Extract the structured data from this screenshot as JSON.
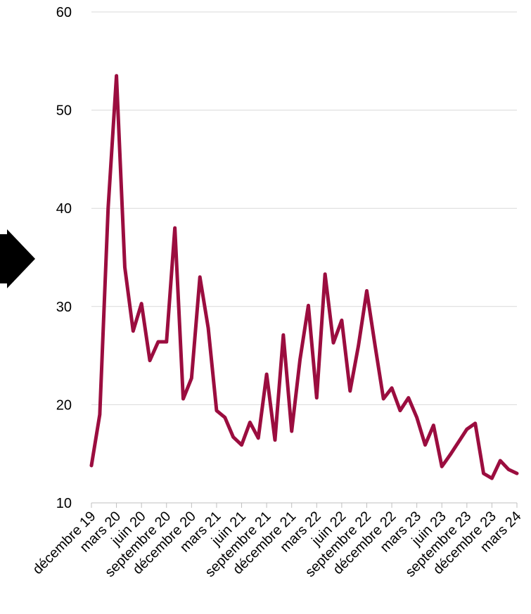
{
  "chart_data": {
    "type": "line",
    "title": "",
    "xlabel": "",
    "ylabel": "",
    "ylim": [
      10,
      60
    ],
    "yticks": [
      "10",
      "20",
      "30",
      "40",
      "50",
      "60"
    ],
    "grid": true,
    "legend": "none",
    "x_tick_labels": [
      "décembre 19",
      "mars 20",
      "juin 20",
      "septembre 20",
      "décembre 20",
      "mars 21",
      "juin 21",
      "septembre 21",
      "décembre 21",
      "mars 22",
      "juin 22",
      "septembre 22",
      "décembre 22",
      "mars 23",
      "juin 23",
      "septembre 23",
      "décembre 23",
      "mars 24"
    ],
    "x": [
      "2019-12",
      "2020-01",
      "2020-02",
      "2020-03",
      "2020-04",
      "2020-05",
      "2020-06",
      "2020-07",
      "2020-08",
      "2020-09",
      "2020-10",
      "2020-11",
      "2020-12",
      "2021-01",
      "2021-02",
      "2021-03",
      "2021-04",
      "2021-05",
      "2021-06",
      "2021-07",
      "2021-08",
      "2021-09",
      "2021-10",
      "2021-11",
      "2021-12",
      "2022-01",
      "2022-02",
      "2022-03",
      "2022-04",
      "2022-05",
      "2022-06",
      "2022-07",
      "2022-08",
      "2022-09",
      "2022-10",
      "2022-11",
      "2022-12",
      "2023-01",
      "2023-02",
      "2023-03",
      "2023-04",
      "2023-05",
      "2023-06",
      "2023-07",
      "2023-08",
      "2023-09",
      "2023-10",
      "2023-11",
      "2023-12",
      "2024-01",
      "2024-02",
      "2024-03"
    ],
    "series": [
      {
        "color": "#9b0d3f",
        "values": [
          13.8,
          19.0,
          40.0,
          53.5,
          34.0,
          27.5,
          30.3,
          24.5,
          26.4,
          26.4,
          38.0,
          20.6,
          22.7,
          33.0,
          27.8,
          19.4,
          18.7,
          16.7,
          15.9,
          18.2,
          16.6,
          23.1,
          16.4,
          27.1,
          17.3,
          24.6,
          30.1,
          20.7,
          33.3,
          26.3,
          28.6,
          21.4,
          26.0,
          31.6,
          26.0,
          20.6,
          21.7,
          19.4,
          20.7,
          18.7,
          15.9,
          17.9,
          13.7,
          14.9,
          16.2,
          17.5,
          18.1,
          13.0,
          12.5,
          14.3,
          13.4,
          13.0
        ]
      }
    ]
  },
  "decor": {
    "arrow": "right-arrow-icon"
  }
}
